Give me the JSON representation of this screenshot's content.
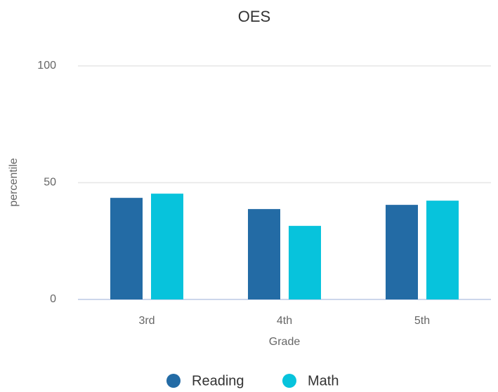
{
  "chart_data": {
    "type": "bar",
    "title": "OES",
    "categories": [
      "3rd",
      "4th",
      "5th"
    ],
    "series": [
      {
        "name": "Reading",
        "color": "#236ba5",
        "values": [
          43.5,
          38.7,
          40.5
        ]
      },
      {
        "name": "Math",
        "color": "#07c3dc",
        "values": [
          45.3,
          31.5,
          42.3
        ]
      }
    ],
    "ylim": [
      0,
      100
    ],
    "yticks": [
      0,
      50,
      100
    ],
    "grid": true,
    "xlabel": "Grade",
    "ylabel": "percentile",
    "legend": "bottom"
  }
}
